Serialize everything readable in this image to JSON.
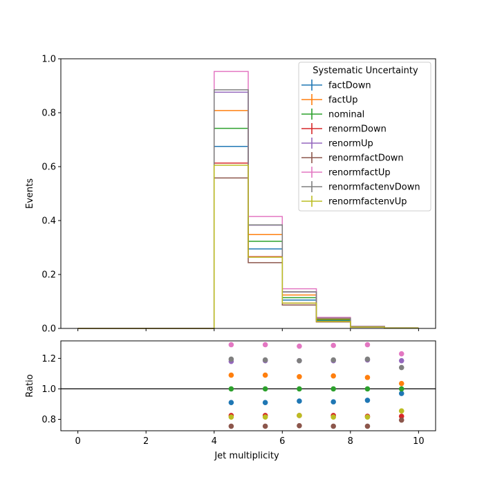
{
  "chart_data": {
    "type": "line",
    "xlabel": "Jet multiplicity",
    "top_panel": {
      "ylabel": "Events",
      "xlim": [
        -0.5,
        10.5
      ],
      "ylim": [
        0,
        1.0
      ],
      "bin_edges": [
        0,
        1,
        2,
        3,
        4,
        5,
        6,
        7,
        8,
        9,
        10
      ],
      "series": [
        {
          "name": "factDown",
          "values": [
            0,
            0,
            0,
            0,
            0.675,
            0.295,
            0.105,
            0.03,
            0.006,
            0.002
          ]
        },
        {
          "name": "factUp",
          "values": [
            0,
            0,
            0,
            0,
            0.808,
            0.348,
            0.124,
            0.035,
            0.007,
            0.002
          ]
        },
        {
          "name": "nominal",
          "values": [
            0,
            0,
            0,
            0,
            0.742,
            0.323,
            0.114,
            0.032,
            0.006,
            0.002
          ]
        },
        {
          "name": "renormDown",
          "values": [
            0,
            0,
            0,
            0,
            0.613,
            0.266,
            0.094,
            0.026,
            0.005,
            0.0016
          ]
        },
        {
          "name": "renormUp",
          "values": [
            0,
            0,
            0,
            0,
            0.876,
            0.383,
            0.135,
            0.038,
            0.007,
            0.002
          ]
        },
        {
          "name": "renormfactDown",
          "values": [
            0,
            0,
            0,
            0,
            0.558,
            0.244,
            0.087,
            0.024,
            0.0045,
            0.0015
          ]
        },
        {
          "name": "renormfactUp",
          "values": [
            0,
            0,
            0,
            0,
            0.953,
            0.415,
            0.147,
            0.041,
            0.008,
            0.0024
          ]
        },
        {
          "name": "renormfactenvDown",
          "values": [
            0,
            0,
            0,
            0,
            0.885,
            0.384,
            0.136,
            0.038,
            0.0072,
            0.0022
          ]
        },
        {
          "name": "renormfactenvUp",
          "values": [
            0,
            0,
            0,
            0,
            0.605,
            0.264,
            0.094,
            0.026,
            0.005,
            0.0017
          ]
        }
      ],
      "legend": {
        "title": "Systematic Uncertainty",
        "placement": "top-right"
      }
    },
    "ratio_panel": {
      "ylabel": "Ratio",
      "ylim": [
        0.725,
        1.315
      ],
      "reference_line": 1.0,
      "x": [
        4.5,
        5.5,
        6.5,
        7.5,
        8.5,
        9.5
      ],
      "series": [
        {
          "name": "factDown",
          "values": [
            0.91,
            0.91,
            0.92,
            0.915,
            0.925,
            0.97
          ]
        },
        {
          "name": "factUp",
          "values": [
            1.09,
            1.09,
            1.08,
            1.085,
            1.075,
            1.035
          ]
        },
        {
          "name": "nominal",
          "values": [
            1.0,
            1.0,
            1.0,
            1.0,
            1.0,
            1.0
          ]
        },
        {
          "name": "renormDown",
          "values": [
            0.825,
            0.825,
            0.825,
            0.825,
            0.82,
            0.82
          ]
        },
        {
          "name": "renormUp",
          "values": [
            1.18,
            1.185,
            1.185,
            1.185,
            1.19,
            1.185
          ]
        },
        {
          "name": "renormfactDown",
          "values": [
            0.755,
            0.755,
            0.758,
            0.755,
            0.755,
            0.795
          ]
        },
        {
          "name": "renormfactUp",
          "values": [
            1.29,
            1.29,
            1.28,
            1.285,
            1.29,
            1.23
          ]
        },
        {
          "name": "renormfactenvDown",
          "values": [
            1.195,
            1.19,
            1.185,
            1.19,
            1.195,
            1.14
          ]
        },
        {
          "name": "renormfactenvUp",
          "values": [
            0.815,
            0.815,
            0.825,
            0.815,
            0.815,
            0.855
          ]
        }
      ]
    },
    "xticks": [
      "0",
      "2",
      "4",
      "6",
      "8",
      "10"
    ],
    "xtick_values": [
      0,
      2,
      4,
      6,
      8,
      10
    ],
    "top_yticks": [
      "0.0",
      "0.2",
      "0.4",
      "0.6",
      "0.8",
      "1.0"
    ],
    "top_ytick_values": [
      0,
      0.2,
      0.4,
      0.6,
      0.8,
      1.0
    ],
    "ratio_yticks": [
      "0.8",
      "1.0",
      "1.2"
    ],
    "ratio_ytick_values": [
      0.8,
      1.0,
      1.2
    ],
    "colors": [
      "#1f77b4",
      "#ff7f0e",
      "#2ca02c",
      "#d62728",
      "#9467bd",
      "#8c564b",
      "#e377c2",
      "#7f7f7f",
      "#bcbd22"
    ]
  }
}
